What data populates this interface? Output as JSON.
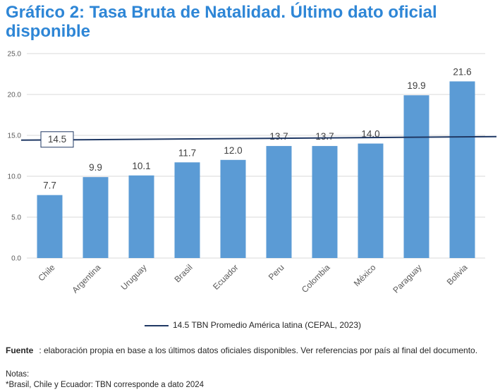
{
  "title": "Gráfico 2: Tasa Bruta de Natalidad. Último dato oficial disponible",
  "colors": {
    "title": "#2E86D6",
    "bar": "#5B9BD5",
    "reference_line": "#1F3864",
    "grid": "#D9D9D9"
  },
  "chart_data": {
    "type": "bar",
    "title": "Gráfico 2: Tasa Bruta de Natalidad. Último dato oficial disponible",
    "xlabel": "",
    "ylabel": "",
    "ylim": [
      0,
      25
    ],
    "yticks": [
      "0.0",
      "5.0",
      "10.0",
      "15.0",
      "20.0",
      "25.0"
    ],
    "grid": true,
    "categories": [
      "Chile",
      "Argentina",
      "Uruguay",
      "Brasil",
      "Ecuador",
      "Peru",
      "Colombia",
      "México",
      "Paraguay",
      "Bolivia"
    ],
    "values": [
      7.7,
      9.9,
      10.1,
      11.7,
      12.0,
      13.7,
      13.7,
      14.0,
      19.9,
      21.6
    ],
    "value_labels": [
      "7.7",
      "9.9",
      "10.1",
      "11.7",
      "12.0",
      "13.7",
      "13.7",
      "14.0",
      "19.9",
      "21.6"
    ],
    "reference_line": {
      "value": 14.5,
      "label": "14.5",
      "legend": "14.5 TBN Promedio América latina (CEPAL, 2023)"
    },
    "legend_position": "bottom"
  },
  "footer": {
    "fuente_label": "Fuente",
    "fuente_text": ":  elaboración propia en base a los últimos datos oficiales disponibles. Ver referencias por país  al final del documento.",
    "notes_label": "Notas:",
    "notes_text": "*Brasil, Chile y Ecuador: TBN corresponde a dato 2024"
  }
}
